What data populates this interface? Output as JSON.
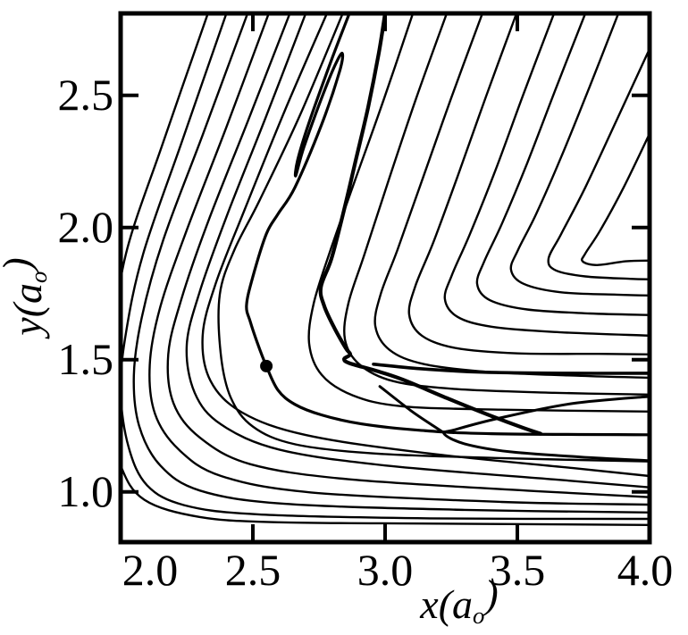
{
  "chart_data": {
    "type": "contour",
    "title": "",
    "xlabel": {
      "pre": "x(a",
      "sub": "o",
      "post": ")"
    },
    "ylabel": {
      "pre": "y(a",
      "sub": "o",
      "post": ")"
    },
    "xlim": [
      2.0,
      4.0
    ],
    "ylim": [
      0.81,
      2.81
    ],
    "xtick_labels": [
      2.0,
      2.5,
      3.0,
      3.5,
      4.0
    ],
    "xtick_marks": [
      2.5,
      3.0,
      3.5
    ],
    "ytick_labels": [
      1.0,
      1.5,
      2.0,
      2.5
    ],
    "ytick_marks": [
      1.0,
      1.5,
      2.0,
      2.5
    ],
    "grid": false,
    "legend": "none",
    "line_color": "#000000",
    "background": "#ffffff",
    "marker": {
      "x": 2.551,
      "y": 1.476,
      "meaning": "point marked on trajectory (filled dot)"
    },
    "contours": [
      {
        "pts": [
          [
            2.33,
            2.81
          ],
          [
            2.16,
            2.32
          ],
          [
            2.02,
            1.9
          ],
          [
            1.97,
            1.55
          ],
          [
            1.96,
            1.3
          ],
          [
            2.0,
            1.1
          ],
          [
            2.09,
            0.97
          ],
          [
            2.3,
            0.905
          ],
          [
            2.6,
            0.885
          ],
          [
            3.2,
            0.88
          ],
          [
            4.0,
            0.875
          ]
        ]
      },
      {
        "pts": [
          [
            2.4,
            2.81
          ],
          [
            2.23,
            2.32
          ],
          [
            2.085,
            1.9
          ],
          [
            2.02,
            1.6
          ],
          [
            2.0,
            1.38
          ],
          [
            2.03,
            1.17
          ],
          [
            2.1,
            1.025
          ],
          [
            2.24,
            0.95
          ],
          [
            2.52,
            0.915
          ],
          [
            3.17,
            0.9
          ],
          [
            4.0,
            0.898
          ]
        ]
      },
      {
        "pts": [
          [
            2.48,
            2.81
          ],
          [
            2.31,
            2.35
          ],
          [
            2.16,
            1.95
          ],
          [
            2.08,
            1.66
          ],
          [
            2.05,
            1.44
          ],
          [
            2.07,
            1.25
          ],
          [
            2.15,
            1.1
          ],
          [
            2.3,
            1.005
          ],
          [
            2.62,
            0.955
          ],
          [
            3.3,
            0.932
          ],
          [
            4.0,
            0.922
          ]
        ]
      },
      {
        "pts": [
          [
            2.56,
            2.81
          ],
          [
            2.4,
            2.38
          ],
          [
            2.25,
            1.99
          ],
          [
            2.15,
            1.7
          ],
          [
            2.11,
            1.48
          ],
          [
            2.13,
            1.295
          ],
          [
            2.22,
            1.16
          ],
          [
            2.38,
            1.06
          ],
          [
            2.72,
            0.998
          ],
          [
            3.44,
            0.962
          ],
          [
            4.0,
            0.952
          ]
        ]
      },
      {
        "pts": [
          [
            2.64,
            2.81
          ],
          [
            2.48,
            2.4
          ],
          [
            2.33,
            2.02
          ],
          [
            2.23,
            1.73
          ],
          [
            2.18,
            1.52
          ],
          [
            2.2,
            1.335
          ],
          [
            2.3,
            1.205
          ],
          [
            2.49,
            1.105
          ],
          [
            2.86,
            1.048
          ],
          [
            3.57,
            1.003
          ],
          [
            4.0,
            0.98
          ]
        ]
      },
      {
        "pts": [
          [
            2.7,
            2.81
          ],
          [
            2.55,
            2.42
          ],
          [
            2.4,
            2.04
          ],
          [
            2.3,
            1.76
          ],
          [
            2.25,
            1.555
          ],
          [
            2.28,
            1.375
          ],
          [
            2.38,
            1.255
          ],
          [
            2.6,
            1.16
          ],
          [
            3.0,
            1.1
          ],
          [
            3.64,
            1.047
          ],
          [
            4.0,
            1.017
          ]
        ]
      },
      {
        "pts": [
          [
            2.78,
            2.81
          ],
          [
            2.62,
            2.44
          ],
          [
            2.47,
            2.07
          ],
          [
            2.36,
            1.79
          ],
          [
            2.31,
            1.59
          ],
          [
            2.34,
            1.42
          ],
          [
            2.46,
            1.3
          ],
          [
            2.7,
            1.215
          ],
          [
            3.15,
            1.147
          ],
          [
            3.71,
            1.09
          ],
          [
            4.0,
            1.06
          ]
        ]
      },
      {
        "pts": [
          [
            2.84,
            2.81
          ],
          [
            2.676,
            2.42
          ],
          [
            2.524,
            2.1
          ],
          [
            2.43,
            1.915
          ],
          [
            2.375,
            1.747
          ],
          [
            2.378,
            1.527
          ],
          [
            2.416,
            1.358
          ],
          [
            2.5,
            1.247
          ],
          [
            2.66,
            1.18
          ],
          [
            2.963,
            1.145
          ],
          [
            3.436,
            1.128
          ],
          [
            4.0,
            1.115
          ]
        ]
      },
      {
        "pts": [
          [
            3.105,
            2.81
          ],
          [
            2.997,
            2.49
          ],
          [
            2.889,
            2.186
          ],
          [
            2.794,
            1.916
          ],
          [
            2.73,
            1.713
          ],
          [
            2.713,
            1.561
          ],
          [
            2.76,
            1.443
          ],
          [
            2.878,
            1.365
          ],
          [
            3.064,
            1.324
          ],
          [
            3.436,
            1.311
          ],
          [
            4.0,
            1.304
          ]
        ]
      },
      {
        "pts": [
          [
            3.233,
            2.81
          ],
          [
            3.118,
            2.49
          ],
          [
            3.01,
            2.169
          ],
          [
            2.922,
            1.899
          ],
          [
            2.861,
            1.713
          ],
          [
            2.848,
            1.578
          ],
          [
            2.902,
            1.483
          ],
          [
            3.03,
            1.419
          ],
          [
            3.267,
            1.389
          ],
          [
            3.639,
            1.375
          ],
          [
            4.0,
            1.368
          ]
        ]
      },
      {
        "pts": [
          [
            3.368,
            2.81
          ],
          [
            3.25,
            2.49
          ],
          [
            3.139,
            2.176
          ],
          [
            3.047,
            1.916
          ],
          [
            2.983,
            1.747
          ],
          [
            2.963,
            1.628
          ],
          [
            3.017,
            1.537
          ],
          [
            3.149,
            1.483
          ],
          [
            3.402,
            1.453
          ],
          [
            3.74,
            1.439
          ],
          [
            4.0,
            1.432
          ]
        ]
      },
      {
        "pts": [
          [
            3.497,
            2.81
          ],
          [
            3.382,
            2.497
          ],
          [
            3.274,
            2.193
          ],
          [
            3.182,
            1.943
          ],
          [
            3.115,
            1.78
          ],
          [
            3.091,
            1.672
          ],
          [
            3.139,
            1.591
          ],
          [
            3.267,
            1.544
          ],
          [
            3.503,
            1.524
          ],
          [
            3.807,
            1.522
          ],
          [
            4.0,
            1.52
          ]
        ]
      },
      {
        "pts": [
          [
            3.639,
            2.81
          ],
          [
            3.524,
            2.507
          ],
          [
            3.416,
            2.213
          ],
          [
            3.321,
            1.976
          ],
          [
            3.253,
            1.821
          ],
          [
            3.226,
            1.73
          ],
          [
            3.274,
            1.662
          ],
          [
            3.402,
            1.625
          ],
          [
            3.639,
            1.605
          ],
          [
            4.0,
            1.591
          ]
        ]
      },
      {
        "pts": [
          [
            3.757,
            2.81
          ],
          [
            3.645,
            2.524
          ],
          [
            3.537,
            2.243
          ],
          [
            3.443,
            2.017
          ],
          [
            3.375,
            1.872
          ],
          [
            3.348,
            1.787
          ],
          [
            3.395,
            1.726
          ],
          [
            3.537,
            1.69
          ],
          [
            3.774,
            1.675
          ],
          [
            4.0,
            1.669
          ]
        ]
      },
      {
        "pts": [
          [
            3.882,
            2.81
          ],
          [
            3.774,
            2.534
          ],
          [
            3.666,
            2.267
          ],
          [
            3.571,
            2.051
          ],
          [
            3.503,
            1.916
          ],
          [
            3.476,
            1.841
          ],
          [
            3.524,
            1.787
          ],
          [
            3.666,
            1.755
          ],
          [
            3.875,
            1.746
          ],
          [
            4.0,
            1.743
          ]
        ]
      },
      {
        "pts": [
          [
            4.0,
            2.676
          ],
          [
            3.875,
            2.405
          ],
          [
            3.757,
            2.152
          ],
          [
            3.666,
            1.976
          ],
          [
            3.618,
            1.882
          ],
          [
            3.645,
            1.838
          ],
          [
            3.757,
            1.815
          ],
          [
            3.926,
            1.806
          ],
          [
            4.0,
            1.804
          ]
        ]
      },
      {
        "pts": [
          [
            4.0,
            2.355
          ],
          [
            3.902,
            2.152
          ],
          [
            3.814,
            1.99
          ],
          [
            3.757,
            1.902
          ],
          [
            3.747,
            1.872
          ],
          [
            3.801,
            1.858
          ],
          [
            3.909,
            1.872
          ],
          [
            4.0,
            1.875
          ]
        ]
      }
    ],
    "trajectory": [
      {
        "name": "main-path-through-marker",
        "width": 3.2,
        "pts": [
          [
            2.865,
            2.81
          ],
          [
            2.794,
            2.625
          ],
          [
            2.71,
            2.39
          ],
          [
            2.669,
            2.254
          ],
          [
            2.662,
            2.196
          ],
          [
            2.693,
            2.304
          ],
          [
            2.76,
            2.49
          ],
          [
            2.811,
            2.615
          ],
          [
            2.838,
            2.659
          ],
          [
            2.828,
            2.591
          ],
          [
            2.76,
            2.39
          ],
          [
            2.659,
            2.152
          ],
          [
            2.595,
            2.051
          ],
          [
            2.551,
            1.976
          ],
          [
            2.5,
            1.814
          ],
          [
            2.476,
            1.706
          ],
          [
            2.49,
            1.645
          ],
          [
            2.517,
            1.564
          ],
          [
            2.551,
            1.476
          ],
          [
            2.595,
            1.385
          ],
          [
            2.659,
            1.331
          ],
          [
            2.76,
            1.291
          ],
          [
            2.912,
            1.257
          ],
          [
            3.132,
            1.233
          ],
          [
            3.402,
            1.22
          ],
          [
            4.0,
            1.216
          ]
        ]
      },
      {
        "name": "incoming-descent-with-kinks",
        "width": 4.2,
        "pts": [
          [
            3.0,
            2.81
          ],
          [
            2.976,
            2.659
          ],
          [
            2.936,
            2.456
          ],
          [
            2.889,
            2.254
          ],
          [
            2.841,
            2.051
          ],
          [
            2.797,
            1.882
          ],
          [
            2.757,
            1.774
          ],
          [
            2.77,
            1.703
          ],
          [
            2.807,
            1.622
          ],
          [
            2.851,
            1.544
          ],
          [
            2.868,
            1.52
          ],
          [
            2.845,
            1.503
          ],
          [
            2.865,
            1.487
          ],
          [
            2.963,
            1.459
          ],
          [
            3.064,
            1.426
          ],
          [
            3.233,
            1.355
          ],
          [
            3.402,
            1.287
          ],
          [
            3.52,
            1.243
          ],
          [
            3.588,
            1.22
          ]
        ]
      },
      {
        "name": "exit-channel-upper-line",
        "width": 3.6,
        "pts": [
          [
            2.956,
            1.483
          ],
          [
            3.132,
            1.466
          ],
          [
            3.368,
            1.453
          ],
          [
            3.672,
            1.449
          ],
          [
            4.0,
            1.449
          ]
        ]
      },
      {
        "name": "hairpin-incoming-segment",
        "width": 3.0,
        "pts": [
          [
            2.98,
            1.399
          ],
          [
            3.098,
            1.307
          ],
          [
            3.182,
            1.25
          ],
          [
            3.223,
            1.223
          ]
        ]
      },
      {
        "name": "hairpin-loop",
        "width": 3.0,
        "pts": [
          [
            4.0,
            1.361
          ],
          [
            3.706,
            1.334
          ],
          [
            3.436,
            1.28
          ],
          [
            3.267,
            1.236
          ],
          [
            3.223,
            1.22
          ],
          [
            3.3,
            1.182
          ],
          [
            3.47,
            1.152
          ],
          [
            3.74,
            1.132
          ],
          [
            4.0,
            1.118
          ]
        ]
      }
    ]
  }
}
